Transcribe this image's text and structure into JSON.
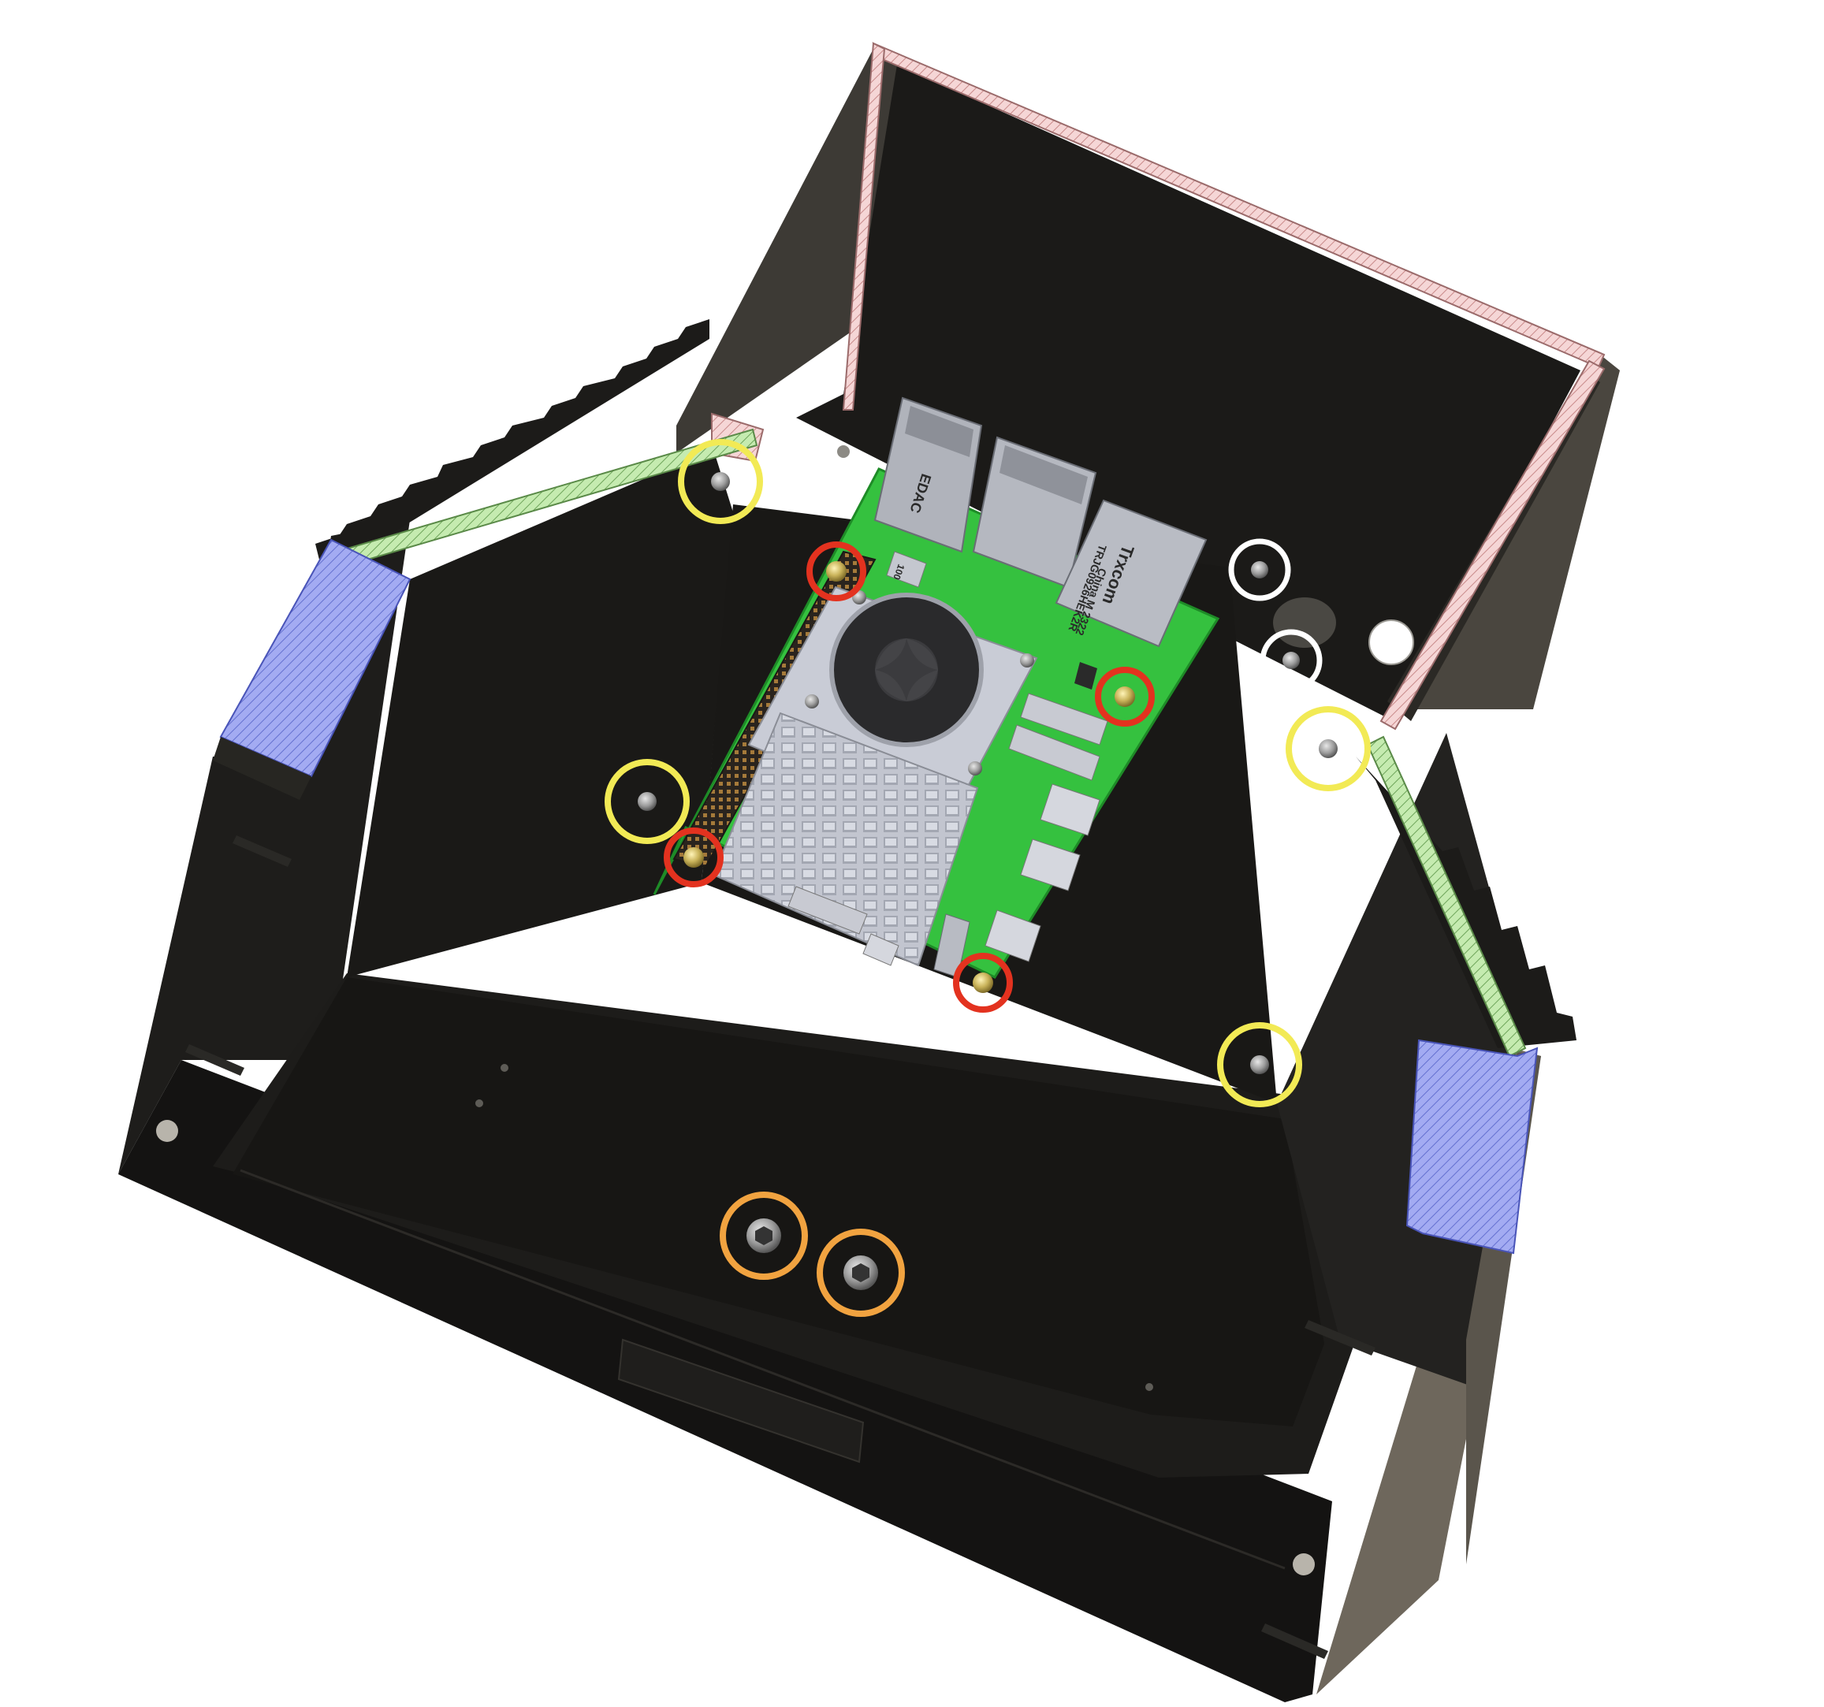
{
  "figure": {
    "type": "cad-render",
    "subject": "3D-printed enclosure with Raspberry Pi board and screw locations",
    "colors": {
      "background": "#ffffff",
      "enclosure": "#1c1b19",
      "enclosure_side": "#3f3c37",
      "enclosure_wall_edge": "#5d5850",
      "pcb": "#2fbf3a",
      "cooler": "#c9ccd6",
      "section_pink": "#f3d2d2",
      "section_green": "#bfe7a7",
      "section_blue": "#9aa3ef"
    }
  },
  "board_labels": {
    "jack_left": "EDAC",
    "jack_right_1": "TRJG0926HEK2R",
    "jack_right_2": "Trxcom",
    "jack_right_3": "China M 2322",
    "small_chip": "100"
  },
  "highlight_groups": [
    {
      "id": "yellow",
      "color": "#f2ea55",
      "count": 4
    },
    {
      "id": "red",
      "color": "#e3321f",
      "count": 4
    },
    {
      "id": "white",
      "color": "#ffffff",
      "count": 2
    },
    {
      "id": "orange",
      "color": "#f1a340",
      "count": 2
    }
  ]
}
